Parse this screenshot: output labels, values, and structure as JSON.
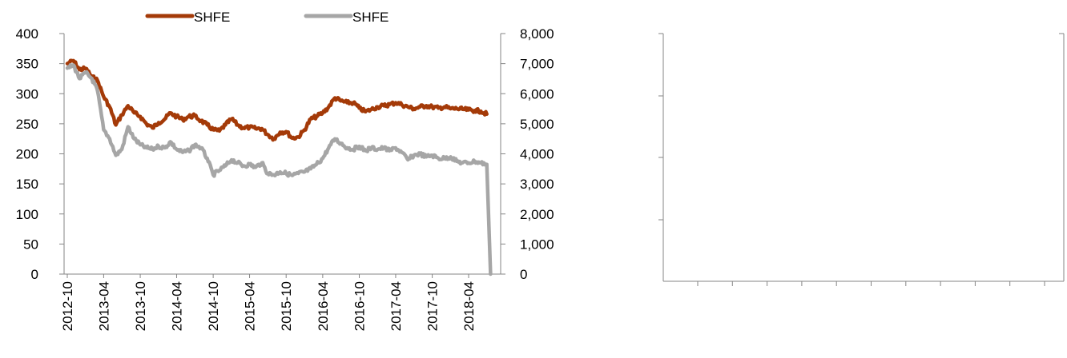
{
  "chart_data": [
    {
      "type": "line",
      "title": "",
      "xlabel": "",
      "ylabel": "",
      "y2label": "",
      "legend": {
        "placement": "top",
        "entries": [
          {
            "label": "SHFE",
            "color": "#a43a08"
          },
          {
            "label": "SHFE",
            "color": "#a6a6a6"
          }
        ]
      },
      "x_tick_labels": [
        "2012-10",
        "2013-04",
        "2013-10",
        "2014-04",
        "2014-10",
        "2015-04",
        "2015-10",
        "2016-04",
        "2016-10",
        "2017-04",
        "2017-10",
        "2018-04"
      ],
      "ylim": [
        0,
        400
      ],
      "y_ticks": [
        0,
        50,
        100,
        150,
        200,
        250,
        300,
        350,
        400
      ],
      "y_tick_labels": [
        "0",
        "50",
        "100",
        "150",
        "200",
        "250",
        "300",
        "350",
        "400"
      ],
      "y2lim": [
        0,
        8000
      ],
      "y2_ticks": [
        0,
        1000,
        2000,
        3000,
        4000,
        5000,
        6000,
        7000,
        8000
      ],
      "y2_tick_labels": [
        "0",
        "1,000",
        "2,000",
        "3,000",
        "4,000",
        "5,000",
        "6,000",
        "7,000",
        "8,000"
      ],
      "grid": false,
      "series": [
        {
          "name": "SHFE",
          "axis": "left",
          "color": "#a43a08",
          "points": [
            [
              "2012-10",
              350
            ],
            [
              "2012-11",
              355
            ],
            [
              "2012-12",
              340
            ],
            [
              "2013-01",
              342
            ],
            [
              "2013-02",
              328
            ],
            [
              "2013-03",
              322
            ],
            [
              "2013-04",
              295
            ],
            [
              "2013-05",
              278
            ],
            [
              "2013-06",
              248
            ],
            [
              "2013-07",
              265
            ],
            [
              "2013-08",
              280
            ],
            [
              "2013-09",
              268
            ],
            [
              "2013-10",
              262
            ],
            [
              "2013-11",
              250
            ],
            [
              "2013-12",
              243
            ],
            [
              "2014-01",
              252
            ],
            [
              "2014-02",
              258
            ],
            [
              "2014-03",
              268
            ],
            [
              "2014-04",
              262
            ],
            [
              "2014-05",
              257
            ],
            [
              "2014-06",
              262
            ],
            [
              "2014-07",
              263
            ],
            [
              "2014-08",
              255
            ],
            [
              "2014-09",
              248
            ],
            [
              "2014-10",
              240
            ],
            [
              "2014-11",
              238
            ],
            [
              "2014-12",
              248
            ],
            [
              "2015-01",
              258
            ],
            [
              "2015-02",
              248
            ],
            [
              "2015-03",
              243
            ],
            [
              "2015-04",
              244
            ],
            [
              "2015-05",
              242
            ],
            [
              "2015-06",
              242
            ],
            [
              "2015-07",
              232
            ],
            [
              "2015-08",
              225
            ],
            [
              "2015-09",
              236
            ],
            [
              "2015-10",
              237
            ],
            [
              "2015-11",
              226
            ],
            [
              "2015-12",
              228
            ],
            [
              "2016-01",
              240
            ],
            [
              "2016-02",
              258
            ],
            [
              "2016-03",
              262
            ],
            [
              "2016-04",
              268
            ],
            [
              "2016-05",
              278
            ],
            [
              "2016-06",
              293
            ],
            [
              "2016-07",
              288
            ],
            [
              "2016-08",
              285
            ],
            [
              "2016-09",
              285
            ],
            [
              "2016-10",
              276
            ],
            [
              "2016-11",
              270
            ],
            [
              "2016-12",
              274
            ],
            [
              "2017-01",
              278
            ],
            [
              "2017-02",
              280
            ],
            [
              "2017-03",
              282
            ],
            [
              "2017-04",
              285
            ],
            [
              "2017-05",
              282
            ],
            [
              "2017-06",
              278
            ],
            [
              "2017-07",
              275
            ],
            [
              "2017-08",
              278
            ],
            [
              "2017-09",
              280
            ],
            [
              "2017-10",
              278
            ],
            [
              "2017-11",
              276
            ],
            [
              "2017-12",
              278
            ],
            [
              "2018-01",
              275
            ],
            [
              "2018-02",
              275
            ],
            [
              "2018-03",
              274
            ],
            [
              "2018-04",
              273
            ],
            [
              "2018-05",
              272
            ],
            [
              "2018-06",
              271
            ],
            [
              "2018-07",
              266
            ]
          ]
        },
        {
          "name": "SHFE",
          "axis": "right",
          "color": "#a6a6a6",
          "points": [
            [
              "2012-10",
              6850
            ],
            [
              "2012-11",
              6950
            ],
            [
              "2012-12",
              6500
            ],
            [
              "2013-01",
              6700
            ],
            [
              "2013-02",
              6500
            ],
            [
              "2013-03",
              6100
            ],
            [
              "2013-04",
              4800
            ],
            [
              "2013-05",
              4500
            ],
            [
              "2013-06",
              3950
            ],
            [
              "2013-07",
              4150
            ],
            [
              "2013-08",
              4900
            ],
            [
              "2013-09",
              4500
            ],
            [
              "2013-10",
              4300
            ],
            [
              "2013-11",
              4200
            ],
            [
              "2013-12",
              4150
            ],
            [
              "2014-01",
              4250
            ],
            [
              "2014-02",
              4200
            ],
            [
              "2014-03",
              4400
            ],
            [
              "2014-04",
              4150
            ],
            [
              "2014-05",
              4050
            ],
            [
              "2014-06",
              4100
            ],
            [
              "2014-07",
              4300
            ],
            [
              "2014-08",
              4200
            ],
            [
              "2014-09",
              3850
            ],
            [
              "2014-10",
              3300
            ],
            [
              "2014-11",
              3450
            ],
            [
              "2014-12",
              3600
            ],
            [
              "2015-01",
              3800
            ],
            [
              "2015-02",
              3700
            ],
            [
              "2015-03",
              3600
            ],
            [
              "2015-04",
              3650
            ],
            [
              "2015-05",
              3550
            ],
            [
              "2015-06",
              3700
            ],
            [
              "2015-07",
              3350
            ],
            [
              "2015-08",
              3300
            ],
            [
              "2015-09",
              3400
            ],
            [
              "2015-10",
              3350
            ],
            [
              "2015-11",
              3280
            ],
            [
              "2015-12",
              3350
            ],
            [
              "2016-01",
              3400
            ],
            [
              "2016-02",
              3500
            ],
            [
              "2016-03",
              3650
            ],
            [
              "2016-04",
              3850
            ],
            [
              "2016-05",
              4200
            ],
            [
              "2016-06",
              4500
            ],
            [
              "2016-07",
              4350
            ],
            [
              "2016-08",
              4200
            ],
            [
              "2016-09",
              4150
            ],
            [
              "2016-10",
              4250
            ],
            [
              "2016-11",
              4100
            ],
            [
              "2016-12",
              4200
            ],
            [
              "2017-01",
              4150
            ],
            [
              "2017-02",
              4200
            ],
            [
              "2017-03",
              4100
            ],
            [
              "2017-04",
              4200
            ],
            [
              "2017-05",
              4050
            ],
            [
              "2017-06",
              3800
            ],
            [
              "2017-07",
              3950
            ],
            [
              "2017-08",
              4000
            ],
            [
              "2017-09",
              3900
            ],
            [
              "2017-10",
              3950
            ],
            [
              "2017-11",
              3850
            ],
            [
              "2017-12",
              3850
            ],
            [
              "2018-01",
              3900
            ],
            [
              "2018-02",
              3750
            ],
            [
              "2018-03",
              3700
            ],
            [
              "2018-04",
              3700
            ],
            [
              "2018-05",
              3750
            ],
            [
              "2018-06",
              3700
            ],
            [
              "2018-07",
              3650
            ],
            [
              "2018-07-20",
              0
            ]
          ]
        }
      ]
    },
    {
      "type": "line",
      "title": "",
      "xlabel": "",
      "ylabel": "",
      "grid": false,
      "series": []
    }
  ]
}
